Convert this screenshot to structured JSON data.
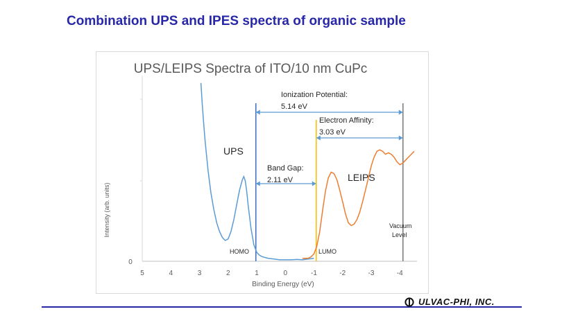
{
  "slide": {
    "title": "Combination UPS and IPES spectra of organic sample",
    "company": "ULVAC-PHI, INC.",
    "logo_icon": "ulvac-phi-logo-icon"
  },
  "chart_data": {
    "type": "line",
    "title": "UPS/LEIPS Spectra of ITO/10 nm CuPc",
    "xlabel": "Binding Energy (eV)",
    "ylabel": "Intensity (arb. units)",
    "xlim": [
      5,
      -5
    ],
    "ylim": [
      0,
      1.25
    ],
    "x_ticks": [
      "5",
      "4",
      "3",
      "2",
      "1",
      "0",
      "-1",
      "-2",
      "-3",
      "-4"
    ],
    "x_tick_values": [
      5,
      4,
      3,
      2,
      1,
      0,
      -1,
      -2,
      -3,
      -4
    ],
    "y_ticks": [
      "0"
    ],
    "grid": false,
    "series": [
      {
        "name": "UPS",
        "color": "#5b9bd5",
        "x": [
          2.95,
          2.9,
          2.85,
          2.8,
          2.7,
          2.6,
          2.5,
          2.4,
          2.3,
          2.2,
          2.1,
          2.0,
          1.9,
          1.8,
          1.7,
          1.6,
          1.5,
          1.45,
          1.4,
          1.35,
          1.3,
          1.2,
          1.1,
          1.0,
          0.9,
          0.8,
          0.6,
          0.4,
          0.2,
          0.0,
          -0.2,
          -0.4,
          -0.6,
          -0.8,
          -1.0
        ],
        "y": [
          1.2,
          1.05,
          0.92,
          0.8,
          0.61,
          0.46,
          0.35,
          0.26,
          0.2,
          0.16,
          0.14,
          0.15,
          0.2,
          0.28,
          0.38,
          0.48,
          0.55,
          0.57,
          0.54,
          0.47,
          0.38,
          0.22,
          0.11,
          0.06,
          0.04,
          0.03,
          0.02,
          0.015,
          0.01,
          0.01,
          0.01,
          0.012,
          0.01,
          0.015,
          0.02
        ]
      },
      {
        "name": "LEIPS",
        "color": "#ed7d31",
        "x": [
          -0.6,
          -0.8,
          -0.9,
          -1.0,
          -1.1,
          -1.2,
          -1.3,
          -1.4,
          -1.5,
          -1.6,
          -1.7,
          -1.8,
          -1.9,
          -2.0,
          -2.1,
          -2.2,
          -2.3,
          -2.4,
          -2.5,
          -2.6,
          -2.7,
          -2.8,
          -2.9,
          -3.0,
          -3.1,
          -3.2,
          -3.3,
          -3.4,
          -3.5,
          -3.6,
          -3.7,
          -3.8,
          -3.9,
          -4.0,
          -4.1,
          -4.2,
          -4.3,
          -4.4,
          -4.5
        ],
        "y": [
          0.02,
          0.02,
          0.03,
          0.05,
          0.1,
          0.2,
          0.34,
          0.47,
          0.56,
          0.6,
          0.59,
          0.55,
          0.48,
          0.4,
          0.32,
          0.26,
          0.24,
          0.25,
          0.28,
          0.33,
          0.4,
          0.48,
          0.56,
          0.64,
          0.7,
          0.74,
          0.75,
          0.74,
          0.72,
          0.73,
          0.72,
          0.7,
          0.67,
          0.65,
          0.66,
          0.68,
          0.7,
          0.72,
          0.74
        ]
      }
    ],
    "vertical_lines": [
      {
        "x": 1.03,
        "color": "#4472c4",
        "label": "HOMO"
      },
      {
        "x": -1.08,
        "color": "#ffc000",
        "label": "LUMO"
      },
      {
        "x": -4.11,
        "color": "#7f7f7f",
        "label": "Vacuum Level"
      }
    ],
    "annotations": [
      {
        "id": "ionization",
        "label_line1": "Ionization Potential:",
        "label_line2": "5.14 eV",
        "from": 1.03,
        "to": -4.11
      },
      {
        "id": "affinity",
        "label_line1": "Electron Affinity:",
        "label_line2": "3.03 eV",
        "from": -1.08,
        "to": -4.11
      },
      {
        "id": "bandgap",
        "label_line1": "Band Gap:",
        "label_line2": "2.11 eV",
        "from": 1.03,
        "to": -1.08
      }
    ],
    "series_labels": {
      "ups": "UPS",
      "leips": "LEIPS"
    },
    "level_labels": {
      "homo": "HOMO",
      "lumo": "LUMO",
      "vacuum_line1": "Vacuum",
      "vacuum_line2": "Level"
    }
  }
}
